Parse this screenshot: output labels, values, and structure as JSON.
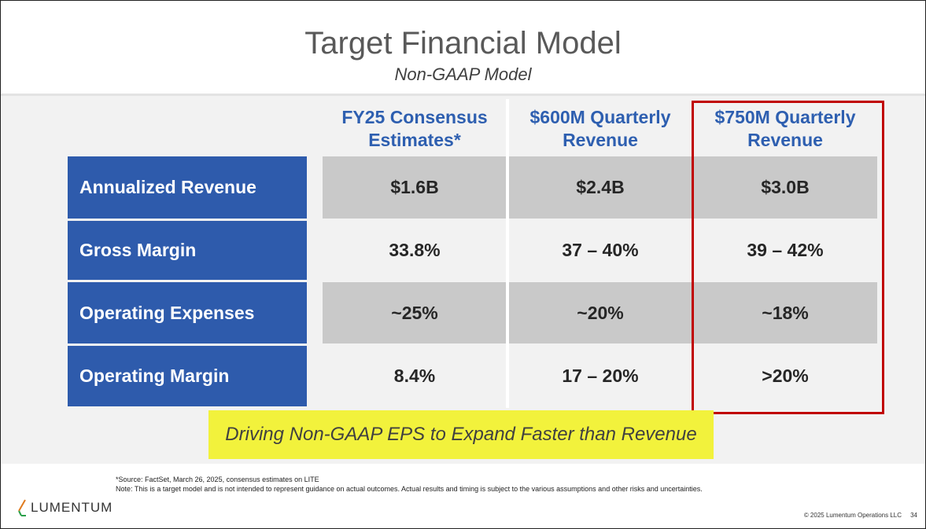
{
  "header": {
    "title": "Target Financial Model",
    "subtitle": "Non-GAAP Model"
  },
  "table": {
    "columns": [
      {
        "line1": "FY25 Consensus",
        "line2": "Estimates*"
      },
      {
        "line1": "$600M Quarterly",
        "line2": "Revenue"
      },
      {
        "line1": "$750M Quarterly",
        "line2": "Revenue"
      }
    ],
    "rows": [
      {
        "label": "Annualized Revenue",
        "values": [
          "$1.6B",
          "$2.4B",
          "$3.0B"
        ]
      },
      {
        "label": "Gross Margin",
        "values": [
          "33.8%",
          "37 – 40%",
          "39 – 42%"
        ]
      },
      {
        "label": "Operating Expenses",
        "values": [
          "~25%",
          "~20%",
          "~18%"
        ]
      },
      {
        "label": "Operating Margin",
        "values": [
          "8.4%",
          "17 – 20%",
          ">20%"
        ]
      }
    ]
  },
  "tagline": "Driving Non-GAAP EPS to Expand Faster than Revenue",
  "footer": {
    "source": "*Source: FactSet, March 26, 2025, consensus estimates on LITE",
    "note": "Note: This is a target model and is not intended to represent guidance on actual outcomes. Actual results and timing is subject to the various assumptions and other risks and uncertainties.",
    "logo_text": "LUMENTUM",
    "copyright": "© 2025 Lumentum Operations LLC",
    "page": "34"
  },
  "colors": {
    "row_label_bg": "#2e5bac",
    "header_text": "#2e5fb0",
    "highlight_border": "#c00000",
    "tagline_bg": "#f2f23c"
  }
}
